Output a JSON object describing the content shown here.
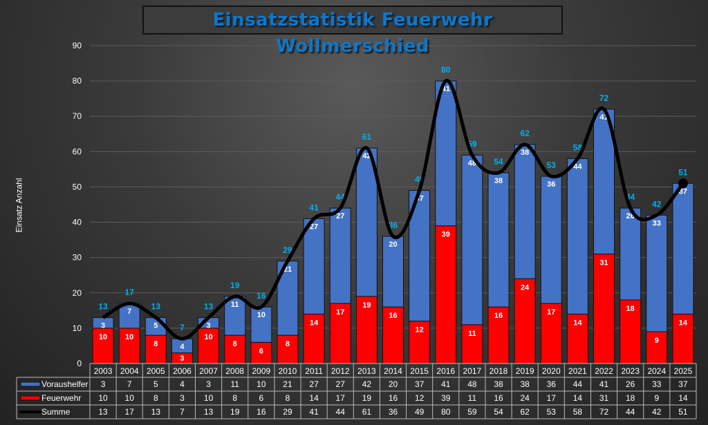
{
  "chart_data": {
    "type": "bar",
    "stacked": true,
    "title": "Einsatzstatistik Feuerwehr Wollmerschied",
    "ylabel": "Einsatz Anzahl",
    "xlabel": "",
    "ylim": [
      0,
      90
    ],
    "yticks": [
      0,
      10,
      20,
      30,
      40,
      50,
      60,
      70,
      80,
      90
    ],
    "grid": true,
    "legend_placement": "bottom (data table)",
    "categories": [
      "2003",
      "2004",
      "2005",
      "2006",
      "2007",
      "2008",
      "2009",
      "2010",
      "2011",
      "2012",
      "2013",
      "2014",
      "2015",
      "2016",
      "2017",
      "2018",
      "2019",
      "2020",
      "2021",
      "2022",
      "2023",
      "2024",
      "2025"
    ],
    "series": [
      {
        "name": "Voraushelfer",
        "type": "bar",
        "color": "#4472c4",
        "values": [
          3,
          7,
          5,
          4,
          3,
          11,
          10,
          21,
          27,
          27,
          42,
          20,
          37,
          41,
          48,
          38,
          38,
          36,
          44,
          41,
          26,
          33,
          37
        ]
      },
      {
        "name": "Feuerwehr",
        "type": "bar",
        "color": "#ff0000",
        "values": [
          10,
          10,
          8,
          3,
          10,
          8,
          6,
          8,
          14,
          17,
          19,
          16,
          12,
          39,
          11,
          16,
          24,
          17,
          14,
          31,
          18,
          9,
          14
        ]
      },
      {
        "name": "Summe",
        "type": "line",
        "color": "#000000",
        "values": [
          13,
          17,
          13,
          7,
          13,
          19,
          16,
          29,
          41,
          44,
          61,
          36,
          49,
          80,
          59,
          54,
          62,
          53,
          58,
          72,
          44,
          42,
          51
        ]
      }
    ]
  },
  "label_color": "#00b0f0"
}
